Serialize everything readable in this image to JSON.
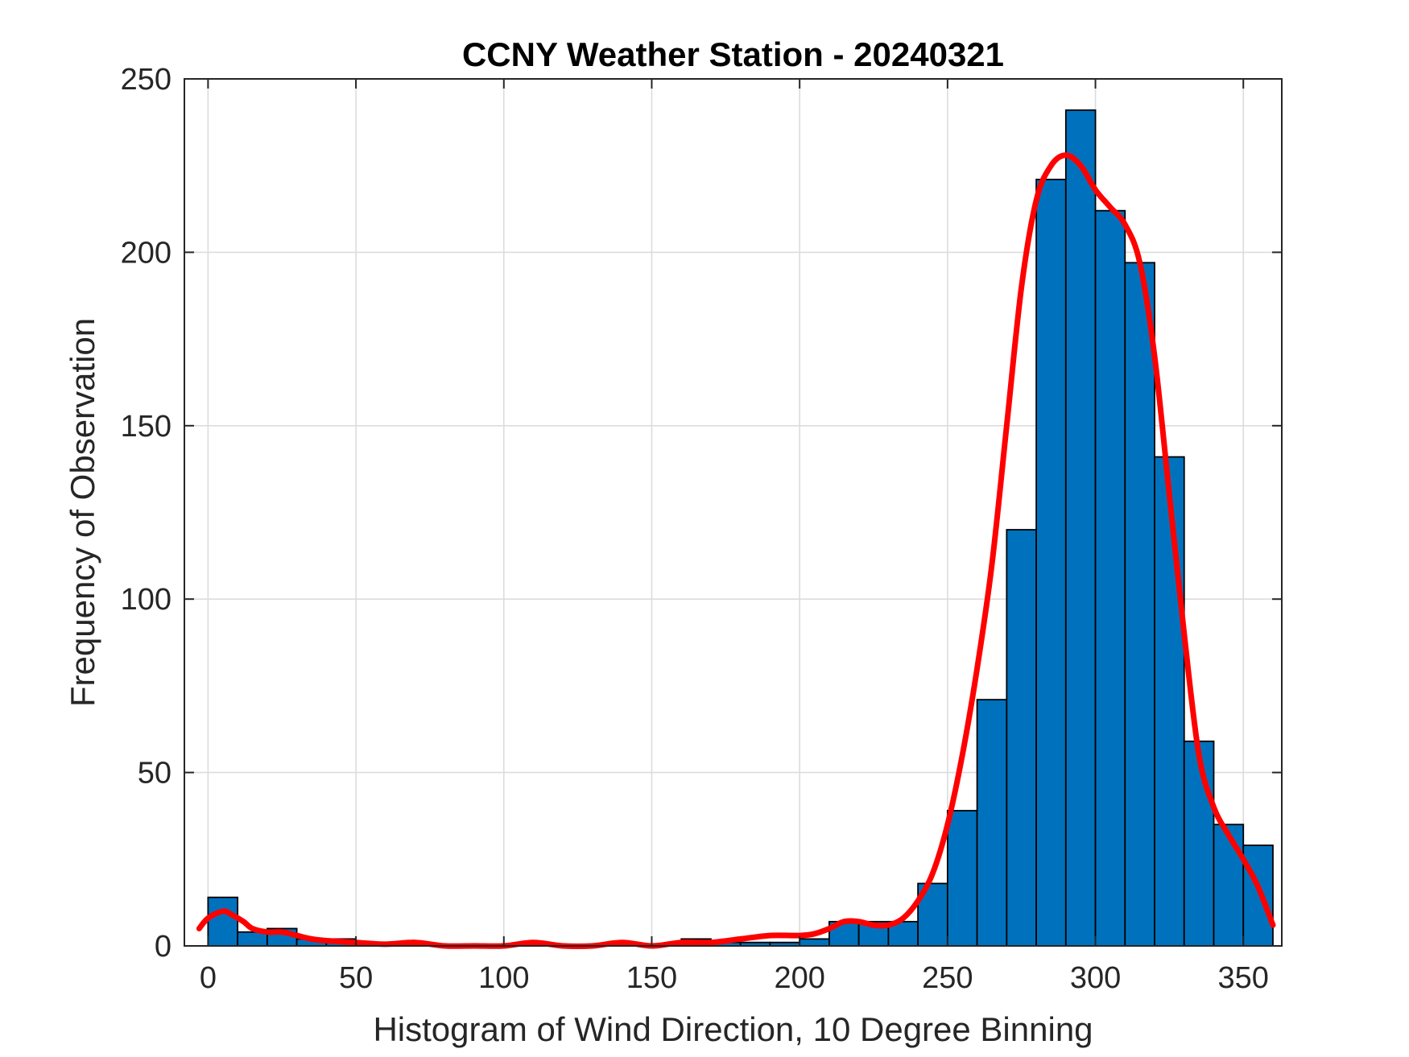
{
  "chart_data": {
    "type": "bar",
    "title": "CCNY Weather Station - 20240321",
    "xlabel": "Histogram of Wind Direction, 10 Degree Binning",
    "ylabel": "Frequency of Observation",
    "xlim": [
      -8,
      363
    ],
    "ylim": [
      0,
      250
    ],
    "xticks": [
      0,
      50,
      100,
      150,
      200,
      250,
      300,
      350
    ],
    "yticks": [
      0,
      50,
      100,
      150,
      200,
      250
    ],
    "grid": true,
    "bin_width": 10,
    "bin_edges_start": [
      0,
      10,
      20,
      30,
      40,
      50,
      60,
      70,
      80,
      90,
      100,
      110,
      120,
      130,
      140,
      150,
      160,
      170,
      180,
      190,
      200,
      210,
      220,
      230,
      240,
      250,
      260,
      270,
      280,
      290,
      300,
      310,
      320,
      330,
      340,
      350
    ],
    "values": [
      14,
      4,
      5,
      2,
      2,
      0,
      0,
      0,
      0,
      0,
      0,
      0,
      0,
      0,
      0,
      0,
      2,
      1,
      1,
      1,
      2,
      7,
      7,
      7,
      18,
      39,
      71,
      120,
      221,
      241,
      212,
      197,
      141,
      59,
      35,
      29
    ],
    "bar_color": "#0072BD",
    "density_curve": {
      "color": "#FF0000",
      "x": [
        -3,
        0,
        5,
        8,
        12,
        15,
        20,
        25,
        30,
        35,
        40,
        50,
        60,
        70,
        80,
        90,
        100,
        110,
        120,
        130,
        140,
        150,
        160,
        170,
        180,
        190,
        200,
        205,
        210,
        215,
        220,
        225,
        230,
        235,
        240,
        245,
        250,
        255,
        260,
        265,
        270,
        275,
        280,
        285,
        290,
        295,
        300,
        305,
        310,
        315,
        320,
        325,
        330,
        335,
        340,
        345,
        350,
        355,
        360
      ],
      "y": [
        5,
        8,
        10,
        9,
        7,
        5,
        4,
        4,
        3,
        2,
        1.5,
        1,
        0.5,
        1,
        0,
        0,
        0,
        1,
        0,
        0,
        1,
        0,
        1,
        1,
        2,
        3,
        3,
        3.5,
        5,
        7,
        7,
        6,
        6,
        8,
        13,
        21,
        35,
        55,
        80,
        110,
        150,
        190,
        215,
        225,
        228,
        225,
        218,
        213,
        208,
        197,
        170,
        130,
        90,
        55,
        40,
        32,
        25,
        17,
        6
      ]
    }
  }
}
